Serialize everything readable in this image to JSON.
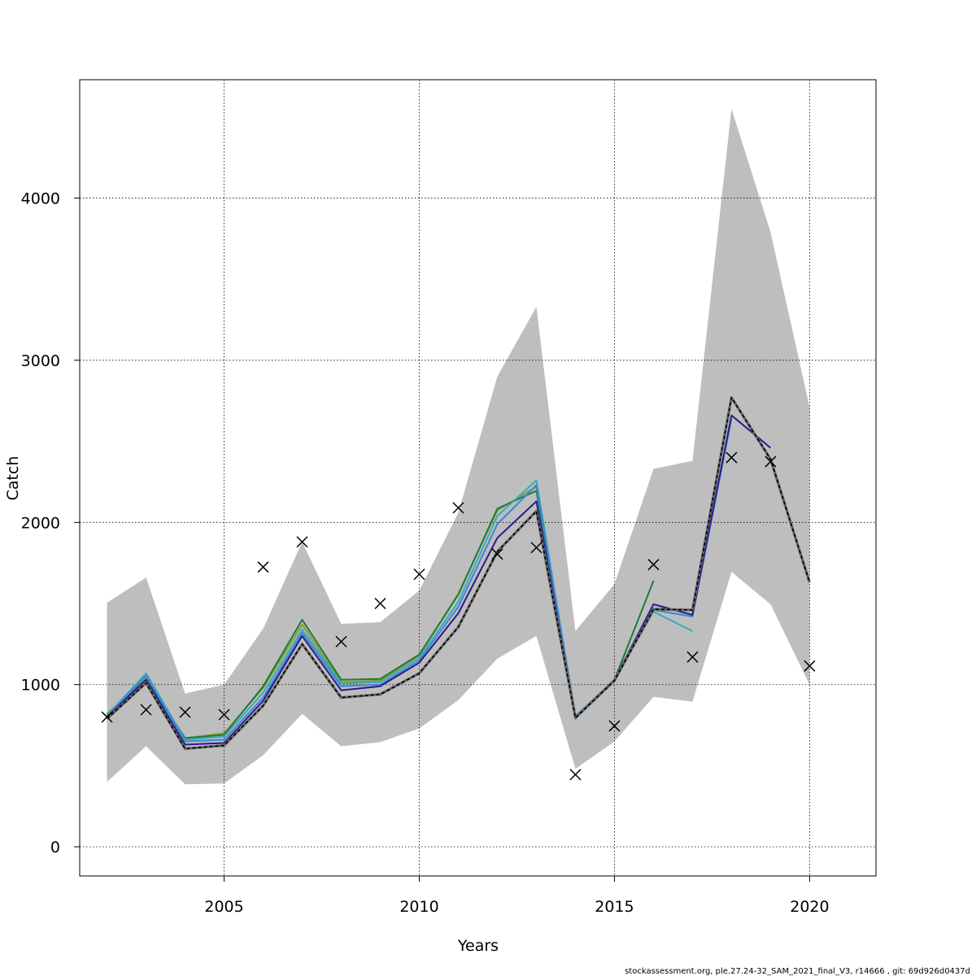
{
  "chart_data": {
    "type": "line",
    "title": "",
    "xlabel": "Years",
    "ylabel": "Catch",
    "xlim": [
      2001.3,
      2021.7
    ],
    "ylim": [
      -180,
      4730
    ],
    "x_ticks": [
      2005,
      2010,
      2015,
      2020
    ],
    "y_ticks": [
      0,
      1000,
      2000,
      3000,
      4000
    ],
    "grid": true,
    "confidence_band": {
      "x": [
        2002,
        2003,
        2004,
        2005,
        2006,
        2007,
        2008,
        2009,
        2010,
        2011,
        2012,
        2013,
        2014,
        2015,
        2016,
        2017,
        2018,
        2019,
        2020
      ],
      "upper": [
        1505,
        1660,
        945,
        1000,
        1345,
        1880,
        1375,
        1385,
        1580,
        2060,
        2900,
        3330,
        1330,
        1620,
        2330,
        2380,
        4550,
        3790,
        2710
      ],
      "lower": [
        400,
        620,
        385,
        390,
        565,
        820,
        620,
        645,
        730,
        905,
        1160,
        1300,
        480,
        650,
        925,
        895,
        1695,
        1495,
        1000
      ],
      "color": "#bebebe"
    },
    "observed": {
      "marker": "x",
      "x": [
        2002,
        2003,
        2004,
        2005,
        2006,
        2007,
        2008,
        2009,
        2010,
        2011,
        2012,
        2013,
        2014,
        2015,
        2016,
        2017,
        2018,
        2019,
        2020
      ],
      "y": [
        800,
        845,
        830,
        815,
        1725,
        1880,
        1265,
        1500,
        1680,
        2090,
        1805,
        1845,
        445,
        745,
        1740,
        1170,
        2400,
        2375,
        1115
      ]
    },
    "series": [
      {
        "color": "#000000",
        "style": "dashed-on-grey",
        "x": [
          2002,
          2003,
          2004,
          2005,
          2006,
          2007,
          2008,
          2009,
          2010,
          2011,
          2012,
          2013,
          2014,
          2015,
          2016,
          2017,
          2018,
          2019,
          2020
        ],
        "values": [
          790,
          1010,
          605,
          625,
          870,
          1250,
          920,
          940,
          1070,
          1355,
          1820,
          2070,
          795,
          1025,
          1465,
          1460,
          2770,
          2390,
          1630
        ]
      },
      {
        "color": "#2a1a8c",
        "x": [
          2002,
          2003,
          2004,
          2005,
          2006,
          2007,
          2008,
          2009,
          2010,
          2011,
          2012,
          2013,
          2014,
          2015,
          2016,
          2017,
          2018,
          2019
        ],
        "values": [
          800,
          1030,
          630,
          640,
          900,
          1300,
          965,
          990,
          1135,
          1440,
          1905,
          2130,
          800,
          1030,
          1495,
          1430,
          2660,
          2460
        ]
      },
      {
        "color": "#3b86d6",
        "x": [
          2002,
          2003,
          2004,
          2005,
          2006,
          2007,
          2008,
          2009,
          2010,
          2011,
          2012,
          2013,
          2014,
          2015,
          2016,
          2017,
          2018
        ],
        "values": [
          805,
          1055,
          650,
          660,
          920,
          1320,
          990,
          1000,
          1150,
          1480,
          1990,
          2230,
          800,
          1030,
          1460,
          1420,
          2640
        ]
      },
      {
        "color": "#3aaabd",
        "x": [
          2002,
          2003,
          2004,
          2005,
          2006,
          2007,
          2008,
          2009,
          2010,
          2011,
          2012,
          2013,
          2014,
          2015,
          2016,
          2017
        ],
        "values": [
          810,
          1070,
          660,
          680,
          950,
          1340,
          1005,
          1015,
          1165,
          1510,
          2040,
          2260,
          805,
          1030,
          1450,
          1330
        ]
      },
      {
        "color": "#1f7a3a",
        "x": [
          2002,
          2003,
          2004,
          2005,
          2006,
          2007,
          2008,
          2009,
          2010,
          2011,
          2012,
          2013,
          2014,
          2015,
          2016
        ],
        "values": [
          815,
          1030,
          670,
          690,
          990,
          1400,
          1030,
          1035,
          1185,
          1555,
          2085,
          2195,
          790,
          1030,
          1640
        ]
      },
      {
        "color": "#8a9a2a",
        "x": [
          2002,
          2003,
          2004,
          2005,
          2006,
          2007,
          2008,
          2009,
          2010,
          2011,
          2012,
          2013,
          2014
        ],
        "values": [
          820,
          1040,
          670,
          700,
          980,
          1370,
          1015,
          1025,
          1180,
          1560,
          2075,
          2220,
          815
        ]
      }
    ]
  },
  "footer_text": "stockassessment.org, ple.27.24-32_SAM_2021_final_V3, r14666 , git: 69d926d0437d"
}
